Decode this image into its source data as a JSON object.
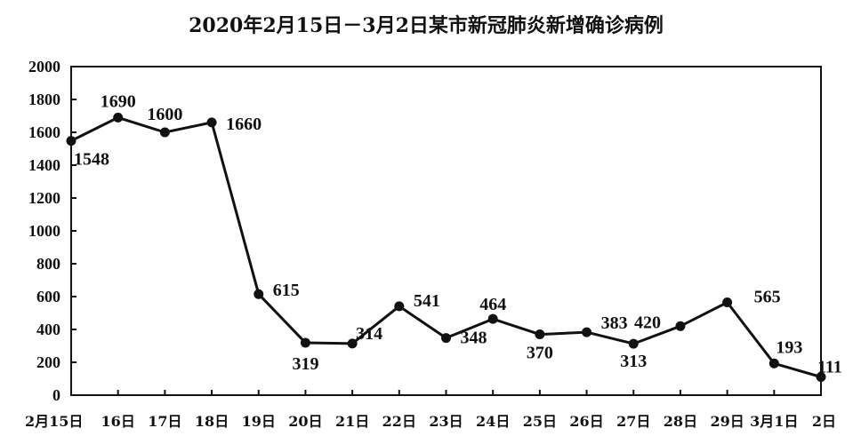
{
  "chart_data": {
    "type": "line",
    "title": "2020年2月15日－3月2日某市新冠肺炎新增确诊病例",
    "xlabel": "",
    "ylabel": "",
    "categories": [
      "2月15日",
      "16日",
      "17日",
      "18日",
      "19日",
      "20日",
      "21日",
      "22日",
      "23日",
      "24日",
      "25日",
      "26日",
      "27日",
      "28日",
      "29日",
      "3月1日",
      "2日"
    ],
    "values": [
      1548,
      1690,
      1600,
      1660,
      615,
      319,
      314,
      541,
      348,
      464,
      370,
      383,
      313,
      420,
      565,
      193,
      111
    ],
    "data_labels": [
      "1548",
      "1690",
      "1600",
      "1660",
      "615",
      "319",
      "314",
      "541",
      "348",
      "464",
      "370",
      "383",
      "313",
      "420",
      "565",
      "193",
      "111"
    ],
    "ylim": [
      0,
      2000
    ],
    "yticks": [
      0,
      200,
      400,
      600,
      800,
      1000,
      1200,
      1400,
      1600,
      1800,
      2000
    ],
    "grid": false,
    "legend": "none"
  }
}
